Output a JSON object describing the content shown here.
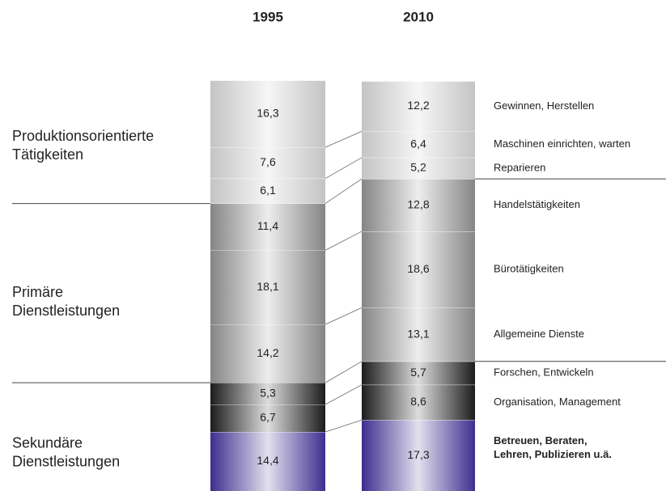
{
  "chart_data": {
    "type": "bar",
    "stacked": true,
    "categories": [
      "1995",
      "2010"
    ],
    "ylim": [
      0,
      100
    ],
    "groups": [
      {
        "label": [
          "Produktionsorientierte",
          "Tätigkeiten"
        ]
      },
      {
        "label": [
          "Primäre",
          "Dienstleistungen"
        ]
      },
      {
        "label": [
          "Sekundäre",
          "Dienstleistungen"
        ]
      }
    ],
    "series": [
      {
        "name": [
          "Gewinnen, Herstellen"
        ],
        "color": "#c4c4c4",
        "values": [
          16.3,
          12.2
        ],
        "value_labels": [
          "16,3",
          "12,2"
        ]
      },
      {
        "name": [
          "Maschinen einrichten, warten"
        ],
        "color": "#c4c4c4",
        "values": [
          7.6,
          6.4
        ],
        "value_labels": [
          "7,6",
          "6,4"
        ]
      },
      {
        "name": [
          "Reparieren"
        ],
        "color": "#c4c4c4",
        "values": [
          6.1,
          5.2
        ],
        "value_labels": [
          "6,1",
          "5,2"
        ]
      },
      {
        "name": [
          "Handelstätigkeiten"
        ],
        "color": "#858585",
        "values": [
          11.4,
          12.8
        ],
        "value_labels": [
          "11,4",
          "12,8"
        ]
      },
      {
        "name": [
          "Bürotätigkeiten"
        ],
        "color": "#858585",
        "values": [
          18.1,
          18.6
        ],
        "value_labels": [
          "18,1",
          "18,6"
        ]
      },
      {
        "name": [
          "Allgemeine Dienste"
        ],
        "color": "#858585",
        "values": [
          14.2,
          13.1
        ],
        "value_labels": [
          "14,2",
          "13,1"
        ]
      },
      {
        "name": [
          "Forschen, Entwickeln"
        ],
        "color": "#1c1c1c",
        "values": [
          5.3,
          5.7
        ],
        "value_labels": [
          "5,3",
          "5,7"
        ]
      },
      {
        "name": [
          "Organisation, Management"
        ],
        "color": "#1c1c1c",
        "values": [
          6.7,
          8.6
        ],
        "value_labels": [
          "6,7",
          "8,6"
        ]
      },
      {
        "name": [
          "Betreuen, Beraten,",
          "Lehren, Publizieren u.ä."
        ],
        "color": "#3d2f8f",
        "values": [
          14.4,
          17.3
        ],
        "value_labels": [
          "14,4",
          "17,3"
        ]
      }
    ]
  }
}
